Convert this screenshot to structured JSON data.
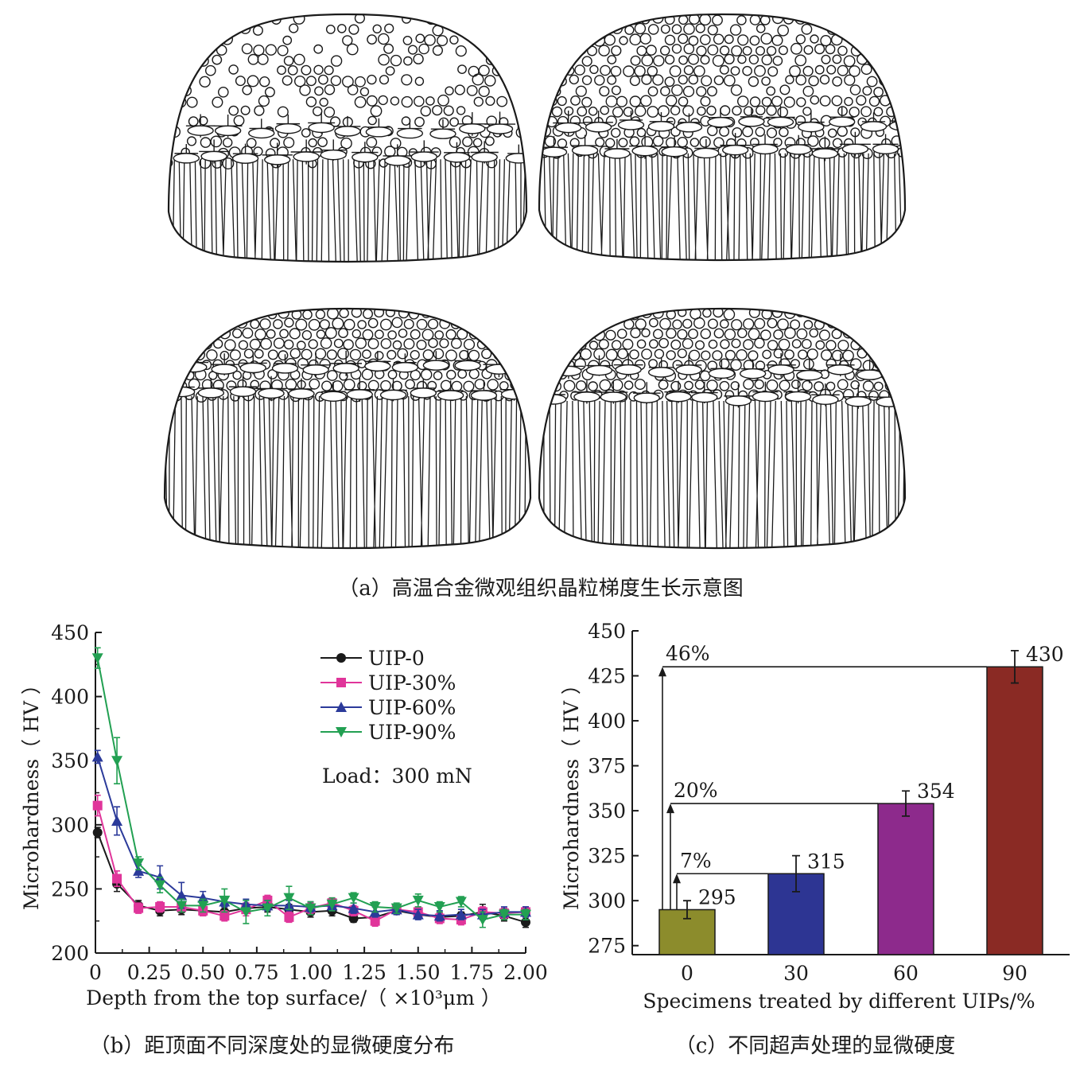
{
  "panel_a": {
    "caption": "（a）高温合金微观组织晶粒梯度生长示意图"
  },
  "panel_b": {
    "caption": "（b）距顶面不同深度处的显微硬度分布",
    "load_note": "Load：300 mN"
  },
  "panel_c": {
    "caption": "（c）不同超声处理的显微硬度"
  },
  "colors": {
    "UIP-0": "#1a1a1a",
    "UIP-30%": "#e0359a",
    "UIP-60%": "#2b3a9a",
    "UIP-90%": "#22a052",
    "bar0": "#8c8c2c",
    "bar30": "#2d3593",
    "bar60": "#8d2a8c",
    "bar90": "#8a2a24"
  },
  "chart_data": [
    {
      "type": "line",
      "xlabel": "Depth from the top surface/（ ×10³μm ）",
      "ylabel": "Microhardness（ HV ）",
      "xlim": [
        0,
        2.0
      ],
      "ylim": [
        200,
        450
      ],
      "xticks": [
        0,
        0.25,
        0.5,
        0.75,
        1.0,
        1.25,
        1.5,
        1.75,
        2.0
      ],
      "xtick_labels": [
        "0",
        "0.25",
        "0.50",
        "0.75",
        "1.00",
        "1.25",
        "1.50",
        "1.75",
        "2.00"
      ],
      "yticks": [
        200,
        250,
        300,
        350,
        400,
        450
      ],
      "x": [
        0.01,
        0.1,
        0.2,
        0.3,
        0.4,
        0.5,
        0.6,
        0.7,
        0.8,
        0.9,
        1.0,
        1.1,
        1.2,
        1.3,
        1.4,
        1.5,
        1.6,
        1.7,
        1.8,
        1.9,
        2.0
      ],
      "legend_position": "top-right",
      "series": [
        {
          "name": "UIP-0",
          "marker": "circle",
          "values": [
            294,
            254,
            237,
            233,
            234,
            233,
            232,
            235,
            236,
            234,
            232,
            233,
            227,
            228,
            233,
            230,
            228,
            229,
            232,
            229,
            224
          ],
          "err": [
            4,
            6,
            4,
            4,
            4,
            4,
            4,
            4,
            4,
            4,
            4,
            4,
            3,
            3,
            3,
            3,
            3,
            3,
            6,
            4,
            4
          ]
        },
        {
          "name": "UIP-30%",
          "marker": "square",
          "values": [
            315,
            258,
            235,
            236,
            236,
            233,
            229,
            234,
            241,
            228,
            235,
            239,
            233,
            225,
            234,
            232,
            227,
            226,
            232,
            231,
            232
          ],
          "err": [
            8,
            6,
            4,
            4,
            4,
            4,
            4,
            5,
            4,
            4,
            4,
            4,
            4,
            4,
            4,
            4,
            4,
            4,
            4,
            4,
            4
          ]
        },
        {
          "name": "UIP-60%",
          "marker": "triangle-up",
          "values": [
            353,
            303,
            264,
            259,
            245,
            243,
            240,
            238,
            237,
            237,
            236,
            237,
            235,
            232,
            234,
            230,
            229,
            230,
            230,
            232,
            232
          ],
          "err": [
            5,
            11,
            5,
            9,
            10,
            5,
            4,
            4,
            4,
            4,
            4,
            4,
            4,
            4,
            4,
            4,
            4,
            4,
            4,
            4,
            4
          ]
        },
        {
          "name": "UIP-90%",
          "marker": "triangle-down",
          "values": [
            430,
            350,
            270,
            253,
            237,
            237,
            241,
            232,
            235,
            243,
            235,
            238,
            243,
            236,
            235,
            241,
            236,
            240,
            226,
            230,
            230
          ],
          "err": [
            8,
            18,
            5,
            6,
            5,
            5,
            9,
            9,
            6,
            9,
            5,
            5,
            4,
            4,
            4,
            5,
            4,
            4,
            6,
            4,
            4
          ]
        }
      ]
    },
    {
      "type": "bar",
      "xlabel": "Specimens treated by different UIPs/%",
      "ylabel": "Microhardness（ HV ）",
      "categories": [
        "0",
        "30",
        "60",
        "90"
      ],
      "values": [
        295,
        315,
        354,
        430
      ],
      "value_labels": [
        "295",
        "315",
        "354",
        "430"
      ],
      "err": [
        5,
        10,
        7,
        9
      ],
      "ylim": [
        270,
        450
      ],
      "yticks": [
        275,
        300,
        325,
        350,
        375,
        400,
        425,
        450
      ],
      "annotations": [
        {
          "text": "7%",
          "level": 315
        },
        {
          "text": "20%",
          "level": 354
        },
        {
          "text": "46%",
          "level": 430
        }
      ]
    }
  ]
}
